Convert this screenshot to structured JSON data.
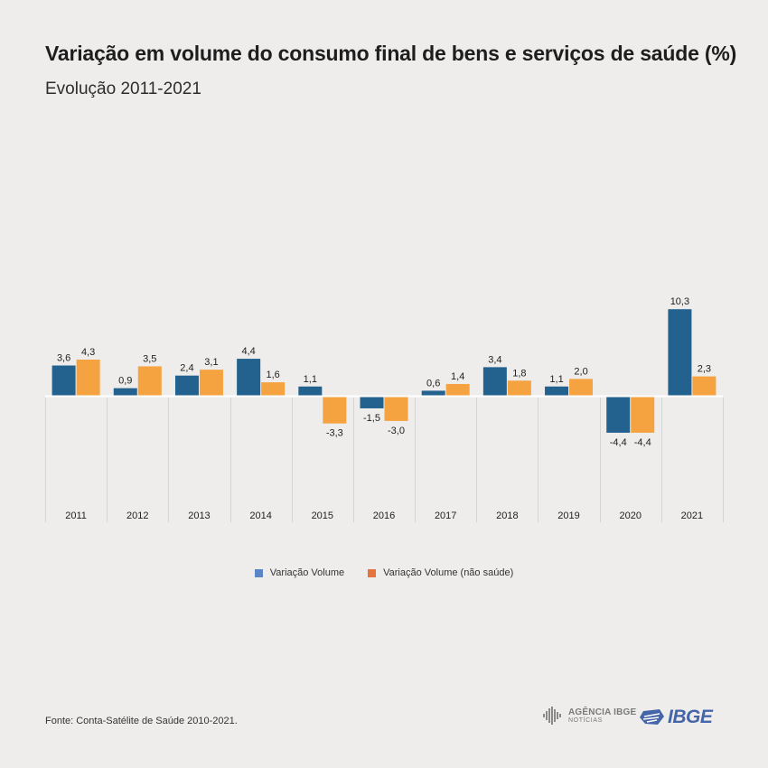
{
  "header": {
    "title": "Variação em volume do consumo final de bens e serviços de saúde (%)",
    "subtitle": "Evolução 2011-2021"
  },
  "footer": {
    "source": "Fonte: Conta-Satélite de Saúde 2010-2021.",
    "logo_agencia_line1": "AGÊNCIA IBGE",
    "logo_agencia_line2": "NOTÍCIAS",
    "logo_ibge": "IBGE"
  },
  "colors": {
    "series1": "#23618e",
    "series2": "#f5a240",
    "legend1": "#5b86c5",
    "legend2": "#e5743c",
    "axis": "#ffffff",
    "separator": "#d4d4d4"
  },
  "legend": [
    {
      "label": "Variação Volume"
    },
    {
      "label": "Variação Volume (não saúde)"
    }
  ],
  "chart_data": {
    "type": "bar",
    "title": "Variação em volume do consumo final de bens e serviços de saúde (%)",
    "subtitle": "Evolução 2011-2021",
    "categories": [
      "2011",
      "2012",
      "2013",
      "2014",
      "2015",
      "2016",
      "2017",
      "2018",
      "2019",
      "2020",
      "2021"
    ],
    "series": [
      {
        "name": "Variação Volume",
        "values": [
          3.6,
          0.9,
          2.4,
          4.4,
          1.1,
          -1.5,
          0.6,
          3.4,
          1.1,
          -4.4,
          10.3
        ],
        "labels": [
          "3,6",
          "0,9",
          "2,4",
          "4,4",
          "1,1",
          "-1,5",
          "0,6",
          "3,4",
          "1,1",
          "-4,4",
          "10,3"
        ]
      },
      {
        "name": "Variação Volume (não saúde)",
        "values": [
          4.3,
          3.5,
          3.1,
          1.6,
          -3.3,
          -3.0,
          1.4,
          1.8,
          2.0,
          -4.4,
          2.3
        ],
        "labels": [
          "4,3",
          "3,5",
          "3,1",
          "1,6",
          "-3,3",
          "-3,0",
          "1,4",
          "1,8",
          "2,0",
          "-4,4",
          "2,3"
        ]
      }
    ],
    "xlabel": "",
    "ylabel": "",
    "ylim": [
      -4.4,
      10.3
    ],
    "grid": false,
    "legend_position": "bottom-center"
  }
}
